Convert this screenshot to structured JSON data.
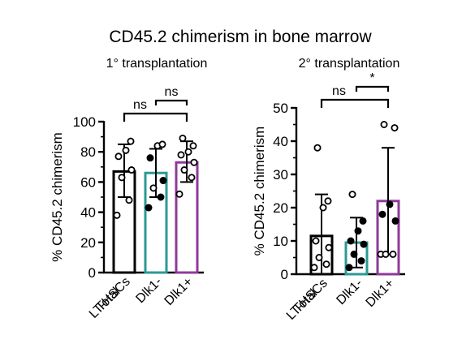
{
  "title": "CD45.2 chimerism in bone marrow",
  "chart_data": [
    {
      "type": "bar",
      "subtitle": "1° transplantation",
      "ylabel": "% CD45.2 chimerism",
      "ylim": [
        0,
        100
      ],
      "yticks": [
        "0",
        "20",
        "40",
        "60",
        "80",
        "100"
      ],
      "categories": [
        "Total LT-HSCs",
        "Dlk1-",
        "Dlk1+"
      ],
      "category_lines": [
        [
          "Total",
          "LT-HSCs"
        ],
        [
          "Dlk1-"
        ],
        [
          "Dlk1+"
        ]
      ],
      "bar_colors": [
        "#000000",
        "#2a9a94",
        "#8e3a99"
      ],
      "means": [
        67,
        66,
        73
      ],
      "error_bars": [
        [
          50,
          85
        ],
        [
          50,
          82
        ],
        [
          60,
          87
        ]
      ],
      "points": [
        {
          "values": [
            38,
            48,
            63,
            68,
            77,
            81,
            87
          ],
          "filled": [
            false,
            false,
            false,
            false,
            false,
            false,
            false
          ]
        },
        {
          "values": [
            43,
            50,
            56,
            61,
            76,
            84,
            85
          ],
          "filled": [
            true,
            true,
            false,
            true,
            true,
            false,
            false
          ]
        },
        {
          "values": [
            52,
            63,
            68,
            73,
            78,
            80,
            84,
            89
          ],
          "filled": [
            false,
            false,
            false,
            false,
            false,
            false,
            false,
            false
          ]
        }
      ],
      "significance": [
        {
          "label": "ns",
          "groups": [
            0,
            2
          ]
        },
        {
          "label": "ns",
          "groups": [
            1,
            2
          ]
        }
      ]
    },
    {
      "type": "bar",
      "subtitle": "2° transplantation",
      "ylabel": "% CD45.2 chimerism",
      "ylim": [
        0,
        50
      ],
      "yticks": [
        "0",
        "10",
        "20",
        "30",
        "40",
        "50"
      ],
      "categories": [
        "Total LT-HSCs",
        "Dlk1-",
        "Dlk1+"
      ],
      "category_lines": [
        [
          "Total",
          "LT-HSCs"
        ],
        [
          "Dlk1-"
        ],
        [
          "Dlk1+"
        ]
      ],
      "bar_colors": [
        "#000000",
        "#2a9a94",
        "#8e3a99"
      ],
      "means": [
        11.5,
        9.5,
        22
      ],
      "error_bars": [
        [
          0,
          24
        ],
        [
          2,
          17
        ],
        [
          6,
          38
        ]
      ],
      "points": [
        {
          "values": [
            2,
            3,
            5,
            8,
            10,
            20,
            22,
            38
          ],
          "filled": [
            false,
            false,
            false,
            false,
            false,
            false,
            false,
            false
          ]
        },
        {
          "values": [
            2,
            4,
            6,
            9,
            10,
            13,
            16,
            24
          ],
          "filled": [
            true,
            true,
            true,
            true,
            true,
            true,
            true,
            false
          ]
        },
        {
          "values": [
            6,
            6,
            6,
            16,
            18,
            21,
            44,
            45
          ],
          "filled": [
            false,
            false,
            false,
            true,
            true,
            true,
            false,
            false
          ]
        }
      ],
      "significance": [
        {
          "label": "ns",
          "groups": [
            0,
            2
          ]
        },
        {
          "label": "*",
          "groups": [
            1,
            2
          ]
        }
      ]
    }
  ]
}
